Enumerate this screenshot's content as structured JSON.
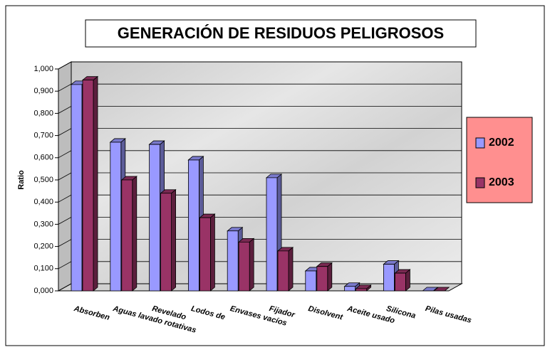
{
  "chart_data": {
    "type": "bar3d",
    "title": "GENERACIÓN DE RESIDUOS PELIGROSOS",
    "ylabel": "Ratio",
    "categories": [
      "Absorben",
      "Aguas lavado rotativas",
      "Revelado",
      "Lodos de",
      "Envases vacíos",
      "Fijador",
      "Disolvent",
      "Aceite usado",
      "Silicona",
      "Pilas usadas"
    ],
    "series": [
      {
        "name": "2002",
        "color": "#9999ff",
        "values": [
          0.93,
          0.67,
          0.66,
          0.59,
          0.27,
          0.51,
          0.09,
          0.02,
          0.12,
          0.0
        ]
      },
      {
        "name": "2003",
        "color": "#993366",
        "values": [
          0.95,
          0.5,
          0.44,
          0.33,
          0.22,
          0.18,
          0.11,
          0.01,
          0.08,
          0.0
        ]
      }
    ],
    "ylim": [
      0,
      1
    ],
    "yticks": [
      {
        "value": 0,
        "label": "0,000"
      },
      {
        "value": 0.1,
        "label": "0,100"
      },
      {
        "value": 0.2,
        "label": "0,200"
      },
      {
        "value": 0.3,
        "label": "0,300"
      },
      {
        "value": 0.4,
        "label": "0,400"
      },
      {
        "value": 0.5,
        "label": "0,500"
      },
      {
        "value": 0.6,
        "label": "0,600"
      },
      {
        "value": 0.7,
        "label": "0,700"
      },
      {
        "value": 0.8,
        "label": "0,800"
      },
      {
        "value": 0.9,
        "label": "0,900"
      },
      {
        "value": 1,
        "label": "1,000"
      }
    ],
    "grid": true,
    "legend": "right"
  }
}
